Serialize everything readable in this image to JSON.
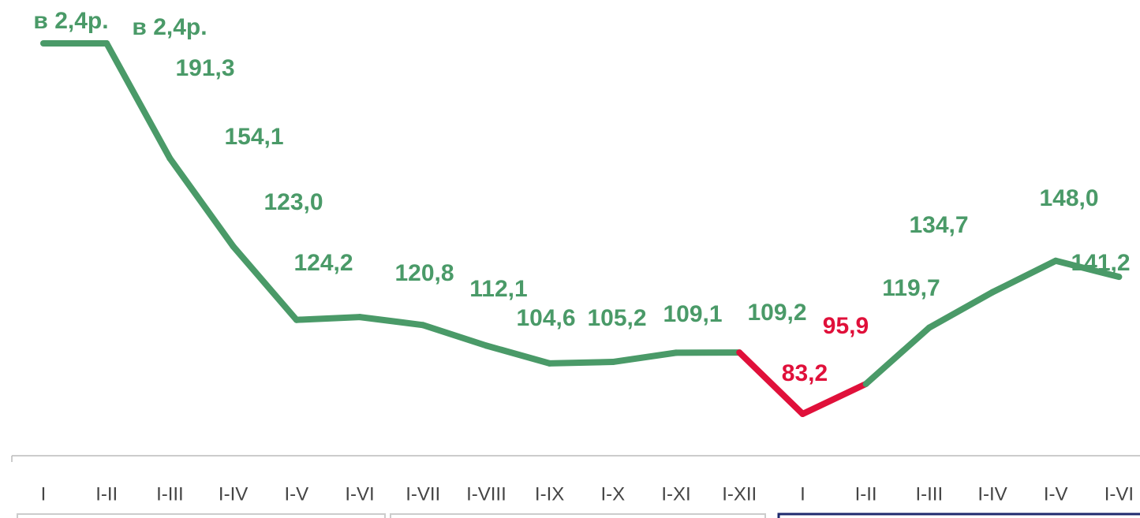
{
  "chart_data": {
    "type": "line",
    "categories": [
      "I",
      "I-II",
      "I-III",
      "I-IV",
      "I-V",
      "I-VI",
      "I-VII",
      "I-VIII",
      "I-IX",
      "I-X",
      "I-XI",
      "I-XII",
      "I",
      "I-II",
      "I-III",
      "I-IV",
      "I-V",
      "I-VI"
    ],
    "series": [
      {
        "color": "#4a9a68",
        "values": [
          240,
          240,
          191.3,
          154.1,
          123.0,
          124.2,
          120.8,
          112.1,
          104.6,
          105.2,
          109.1,
          109.2,
          83.2,
          95.9,
          119.7,
          134.7,
          148.0,
          141.2
        ],
        "value_labels": [
          "в 2,4р.",
          "в 2,4р.",
          "191,3",
          "154,1",
          "123,0",
          "124,2",
          "120,8",
          "112,1",
          "104,6",
          "105,2",
          "109,1",
          "109,2",
          "83,2",
          "95,9",
          "119,7",
          "134,7",
          "148,0",
          "141,2"
        ]
      }
    ],
    "highlight_points": [
      12,
      13
    ],
    "highlight_color": "#e0103a",
    "ylim": [
      83.2,
      240
    ],
    "grid": false
  }
}
